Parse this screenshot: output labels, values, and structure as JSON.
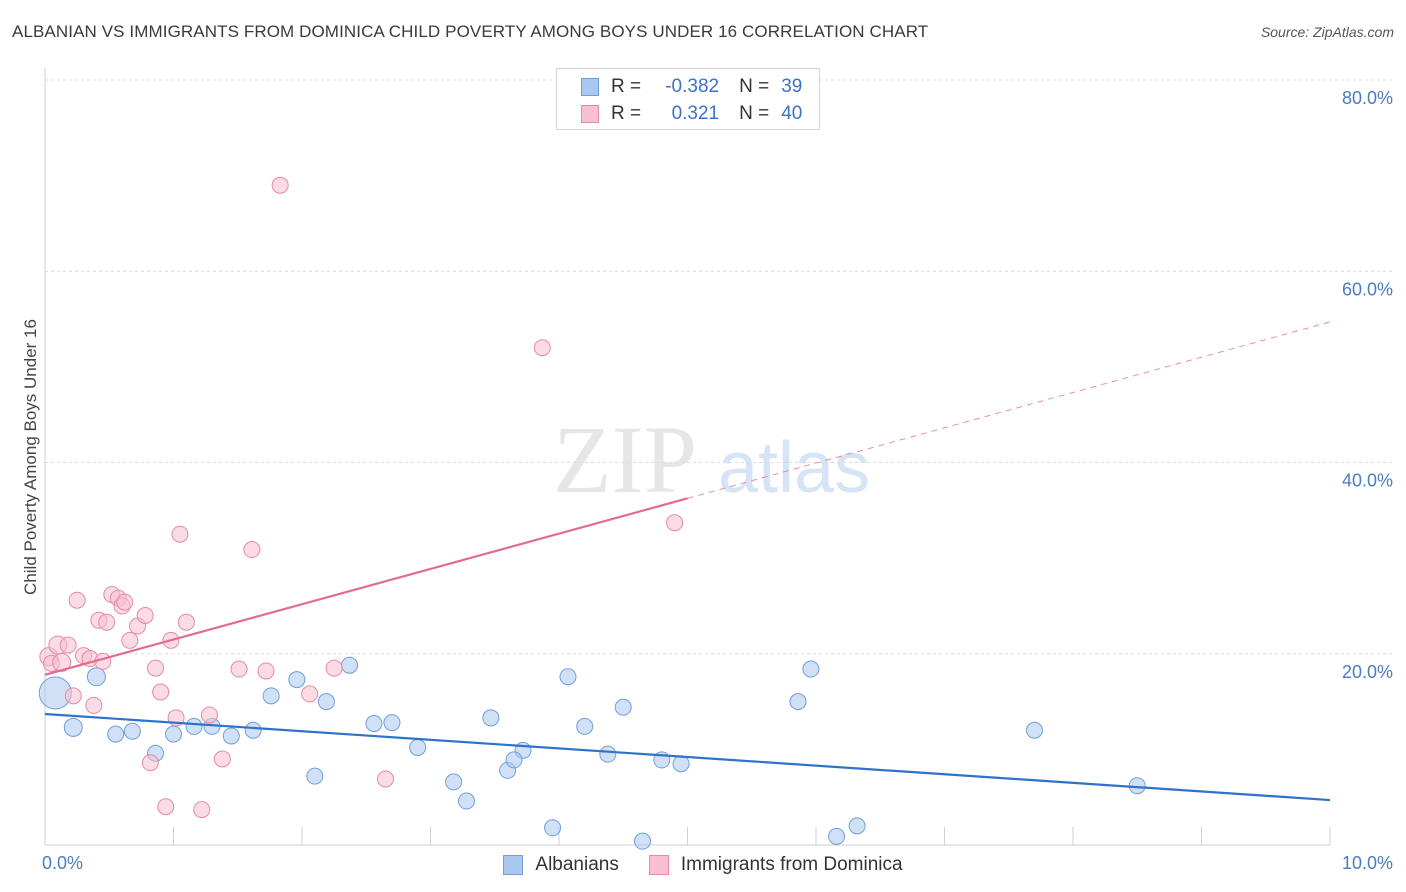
{
  "title": "ALBANIAN VS IMMIGRANTS FROM DOMINICA CHILD POVERTY AMONG BOYS UNDER 16 CORRELATION CHART",
  "source": "Source: ZipAtlas.com",
  "watermark": {
    "zip": "ZIP",
    "atlas": "atlas"
  },
  "stats": [
    {
      "r_label": "R =",
      "r_value": "-0.382",
      "n_label": "N =",
      "n_value": "39",
      "color": "#a9c8f0",
      "border": "#6f9fd8"
    },
    {
      "r_label": "R =",
      "r_value": "0.321",
      "n_label": "N =",
      "n_value": "40",
      "color": "#f8c0d0",
      "border": "#e58aa7"
    }
  ],
  "legend": [
    {
      "label": "Albanians",
      "color": "#a9c8f0",
      "border": "#6f9fd8"
    },
    {
      "label": "Immigrants from Dominica",
      "color": "#f8c0d0",
      "border": "#e58aa7"
    }
  ],
  "chart_data": {
    "type": "scatter",
    "title": "ALBANIAN VS IMMIGRANTS FROM DOMINICA CHILD POVERTY AMONG BOYS UNDER 16 CORRELATION CHART",
    "xlabel": "",
    "ylabel": "Child Poverty Among Boys Under 16",
    "xlim": [
      0,
      10
    ],
    "ylim": [
      0,
      80
    ],
    "x_tick_labels": [
      "0.0%",
      "10.0%"
    ],
    "y_ticks": [
      20,
      40,
      60,
      80
    ],
    "y_tick_labels": [
      "20.0%",
      "40.0%",
      "60.0%",
      "80.0%"
    ],
    "grid": true,
    "series": [
      {
        "name": "Albanians",
        "color": "#a9c8f0",
        "stroke": "#6f9fd8",
        "trend": {
          "x0": 0,
          "y0": 13.7,
          "x1": 10,
          "y1": 4.7,
          "color": "#2f72c9",
          "dashed_from": null
        },
        "points": [
          [
            0.08,
            15.9,
            16
          ],
          [
            0.22,
            12.3,
            9
          ],
          [
            0.4,
            17.6,
            9
          ],
          [
            0.55,
            11.6,
            8
          ],
          [
            0.68,
            11.9,
            8
          ],
          [
            0.86,
            9.6,
            8
          ],
          [
            1.0,
            11.6,
            8
          ],
          [
            1.16,
            12.4,
            8
          ],
          [
            1.3,
            12.4,
            8
          ],
          [
            1.45,
            11.4,
            8
          ],
          [
            1.62,
            12.0,
            8
          ],
          [
            1.76,
            15.6,
            8
          ],
          [
            1.96,
            17.3,
            8
          ],
          [
            2.1,
            7.2,
            8
          ],
          [
            2.19,
            15.0,
            8
          ],
          [
            2.37,
            18.8,
            8
          ],
          [
            2.56,
            12.7,
            8
          ],
          [
            2.7,
            12.8,
            8
          ],
          [
            2.9,
            10.2,
            8
          ],
          [
            3.18,
            6.6,
            8
          ],
          [
            3.28,
            4.6,
            8
          ],
          [
            3.47,
            13.3,
            8
          ],
          [
            3.6,
            7.8,
            8
          ],
          [
            3.72,
            9.9,
            8
          ],
          [
            3.95,
            1.8,
            8
          ],
          [
            4.07,
            17.6,
            8
          ],
          [
            4.2,
            12.4,
            8
          ],
          [
            4.38,
            9.5,
            8
          ],
          [
            4.5,
            14.4,
            8
          ],
          [
            4.65,
            0.4,
            8
          ],
          [
            4.8,
            8.9,
            8
          ],
          [
            4.95,
            8.5,
            8
          ],
          [
            5.86,
            15.0,
            8
          ],
          [
            5.96,
            18.4,
            8
          ],
          [
            6.16,
            0.9,
            8
          ],
          [
            6.32,
            2.0,
            8
          ],
          [
            7.7,
            12.0,
            8
          ],
          [
            8.5,
            6.2,
            8
          ],
          [
            3.65,
            8.9,
            8
          ]
        ]
      },
      {
        "name": "Immigrants from Dominica",
        "color": "#f8c0d0",
        "stroke": "#e58aa7",
        "trend": {
          "x0": 0,
          "y0": 17.8,
          "x1": 10,
          "y1": 54.7,
          "color": "#e36a90",
          "dashed_from": 5
        },
        "points": [
          [
            0.03,
            19.7,
            9
          ],
          [
            0.05,
            19.0,
            8
          ],
          [
            0.1,
            20.9,
            9
          ],
          [
            0.13,
            19.1,
            9
          ],
          [
            0.18,
            20.9,
            8
          ],
          [
            0.22,
            15.6,
            8
          ],
          [
            0.25,
            25.6,
            8
          ],
          [
            0.3,
            19.8,
            8
          ],
          [
            0.35,
            19.5,
            8
          ],
          [
            0.38,
            14.6,
            8
          ],
          [
            0.42,
            23.5,
            8
          ],
          [
            0.45,
            19.2,
            8
          ],
          [
            0.48,
            23.3,
            8
          ],
          [
            0.52,
            26.2,
            8
          ],
          [
            0.57,
            25.8,
            8
          ],
          [
            0.6,
            25.0,
            8
          ],
          [
            0.62,
            25.4,
            8
          ],
          [
            0.66,
            21.4,
            8
          ],
          [
            0.72,
            22.9,
            8
          ],
          [
            0.78,
            24.0,
            8
          ],
          [
            0.82,
            8.6,
            8
          ],
          [
            0.86,
            18.5,
            8
          ],
          [
            0.9,
            16.0,
            8
          ],
          [
            0.94,
            4.0,
            8
          ],
          [
            0.98,
            21.4,
            8
          ],
          [
            1.02,
            13.3,
            8
          ],
          [
            1.05,
            32.5,
            8
          ],
          [
            1.1,
            23.3,
            8
          ],
          [
            1.22,
            3.7,
            8
          ],
          [
            1.28,
            13.6,
            8
          ],
          [
            1.38,
            9.0,
            8
          ],
          [
            1.51,
            18.4,
            8
          ],
          [
            1.61,
            30.9,
            8
          ],
          [
            1.72,
            18.2,
            8
          ],
          [
            1.83,
            69.0,
            8
          ],
          [
            2.06,
            15.8,
            8
          ],
          [
            2.25,
            18.5,
            8
          ],
          [
            2.65,
            6.9,
            8
          ],
          [
            3.87,
            52.0,
            8
          ],
          [
            4.9,
            33.7,
            8
          ]
        ]
      }
    ]
  }
}
